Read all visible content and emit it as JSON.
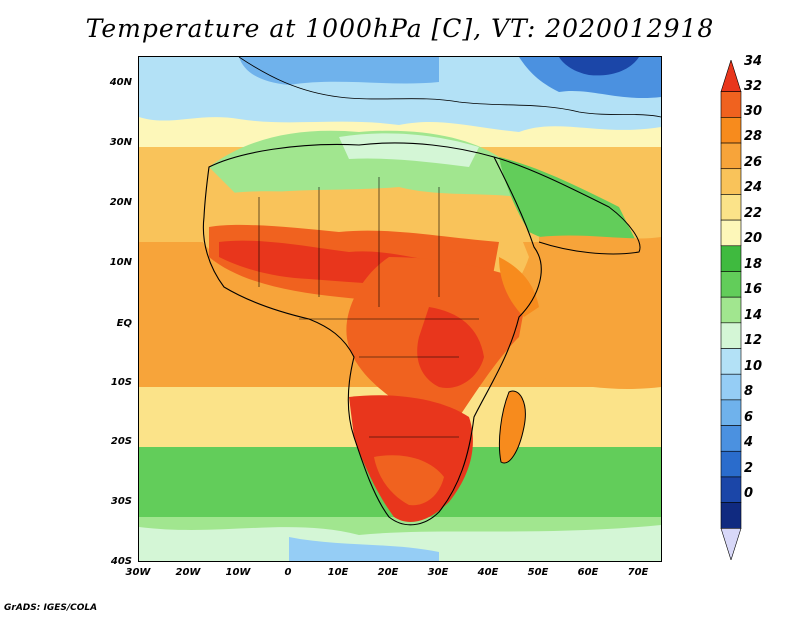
{
  "title": "Temperature at 1000hPa [C], VT: 2020012918",
  "credit": "GrADS: IGES/COLA",
  "map": {
    "region": "Africa",
    "lon_range": [
      -30,
      75
    ],
    "lat_range": [
      -40,
      45
    ],
    "lat_ticks": [
      {
        "value": 40,
        "label": "40N"
      },
      {
        "value": 30,
        "label": "30N"
      },
      {
        "value": 20,
        "label": "20N"
      },
      {
        "value": 10,
        "label": "10N"
      },
      {
        "value": 0,
        "label": "EQ"
      },
      {
        "value": -10,
        "label": "10S"
      },
      {
        "value": -20,
        "label": "20S"
      },
      {
        "value": -30,
        "label": "30S"
      },
      {
        "value": -40,
        "label": "40S"
      }
    ],
    "lon_ticks": [
      {
        "value": -30,
        "label": "30W"
      },
      {
        "value": -20,
        "label": "20W"
      },
      {
        "value": -10,
        "label": "10W"
      },
      {
        "value": 0,
        "label": "0"
      },
      {
        "value": 10,
        "label": "10E"
      },
      {
        "value": 20,
        "label": "20E"
      },
      {
        "value": 30,
        "label": "30E"
      },
      {
        "value": 40,
        "label": "40E"
      },
      {
        "value": 50,
        "label": "50E"
      },
      {
        "value": 60,
        "label": "60E"
      },
      {
        "value": 70,
        "label": "70E"
      }
    ]
  },
  "colorbar": {
    "levels": [
      "34",
      "32",
      "30",
      "28",
      "26",
      "24",
      "22",
      "20",
      "18",
      "16",
      "14",
      "12",
      "10",
      "8",
      "6",
      "4",
      "2",
      "0"
    ],
    "colors": [
      "#e8361c",
      "#f0621f",
      "#f78b1d",
      "#f7a43a",
      "#f9c35a",
      "#fbe389",
      "#fdf7b9",
      "#3fba3f",
      "#62cd5a",
      "#a1e68f",
      "#d4f6d6",
      "#b3e1f6",
      "#95cdf5",
      "#6fb2ec",
      "#4b91e0",
      "#2a6ccc",
      "#1b46a8",
      "#102a80",
      "#d8d8f8"
    ]
  }
}
